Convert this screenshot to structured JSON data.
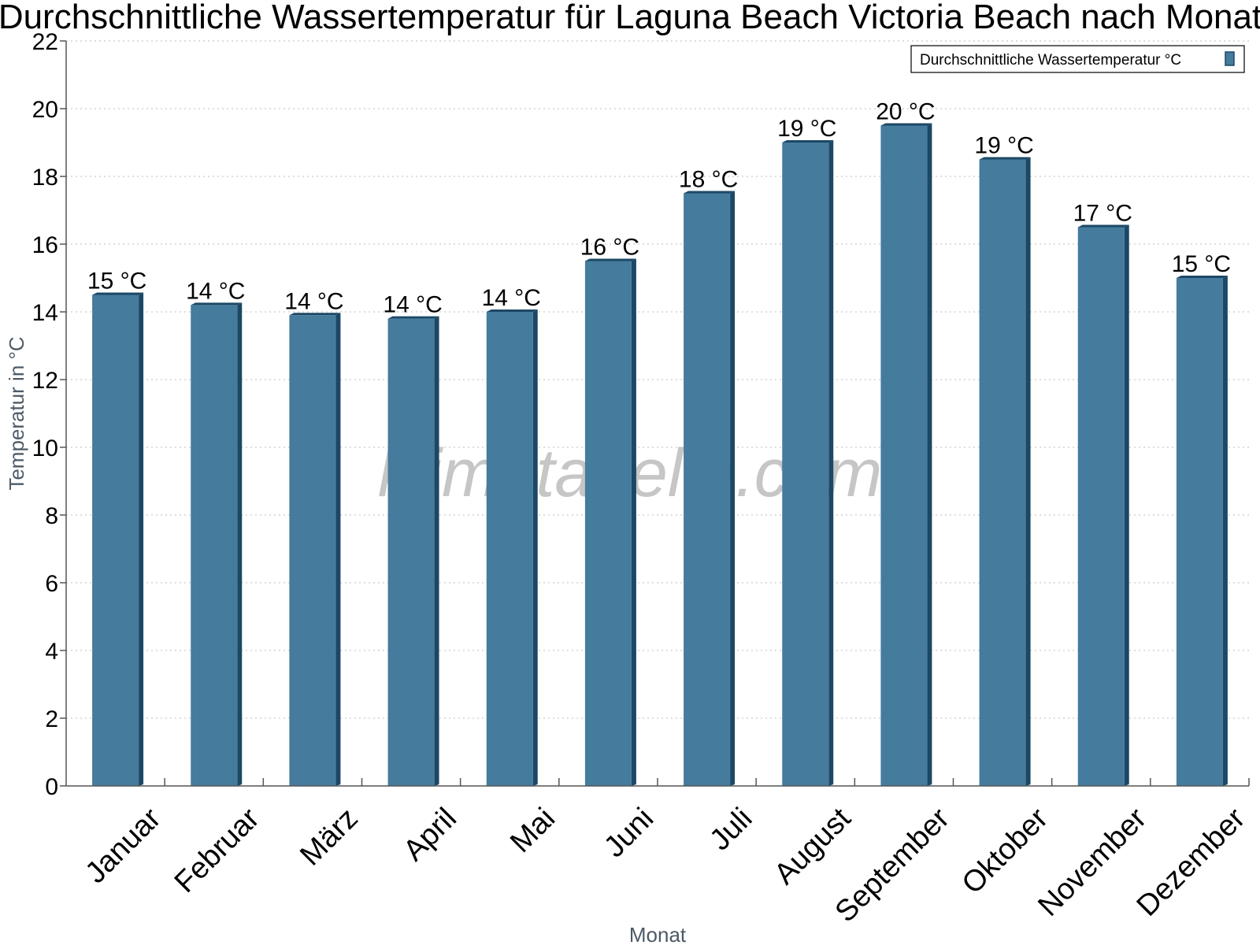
{
  "chart_data": {
    "type": "bar",
    "title": "Durchschnittliche Wassertemperatur für Laguna Beach Victoria Beach nach Monat",
    "xlabel": "Monat",
    "ylabel": "Temperatur in °C",
    "ylim": [
      0,
      22
    ],
    "yticks": [
      "0",
      "2",
      "4",
      "6",
      "8",
      "10",
      "12",
      "14",
      "16",
      "18",
      "20",
      "22"
    ],
    "grid": true,
    "legend_position": "top-right",
    "categories": [
      "Januar",
      "Februar",
      "März",
      "April",
      "Mai",
      "Juni",
      "Juli",
      "August",
      "September",
      "Oktober",
      "November",
      "Dezember"
    ],
    "series": [
      {
        "name": "Durchschnittliche Wassertemperatur °C",
        "color": "#457b9d",
        "values": [
          14.5,
          14.2,
          13.9,
          13.8,
          14.0,
          15.5,
          17.5,
          19.0,
          19.5,
          18.5,
          16.5,
          15.0
        ],
        "labels": [
          "15 °C",
          "14 °C",
          "14 °C",
          "14 °C",
          "14 °C",
          "16 °C",
          "18 °C",
          "19 °C",
          "20 °C",
          "19 °C",
          "17 °C",
          "15 °C"
        ]
      }
    ]
  },
  "watermark": "klimatabelle.com"
}
